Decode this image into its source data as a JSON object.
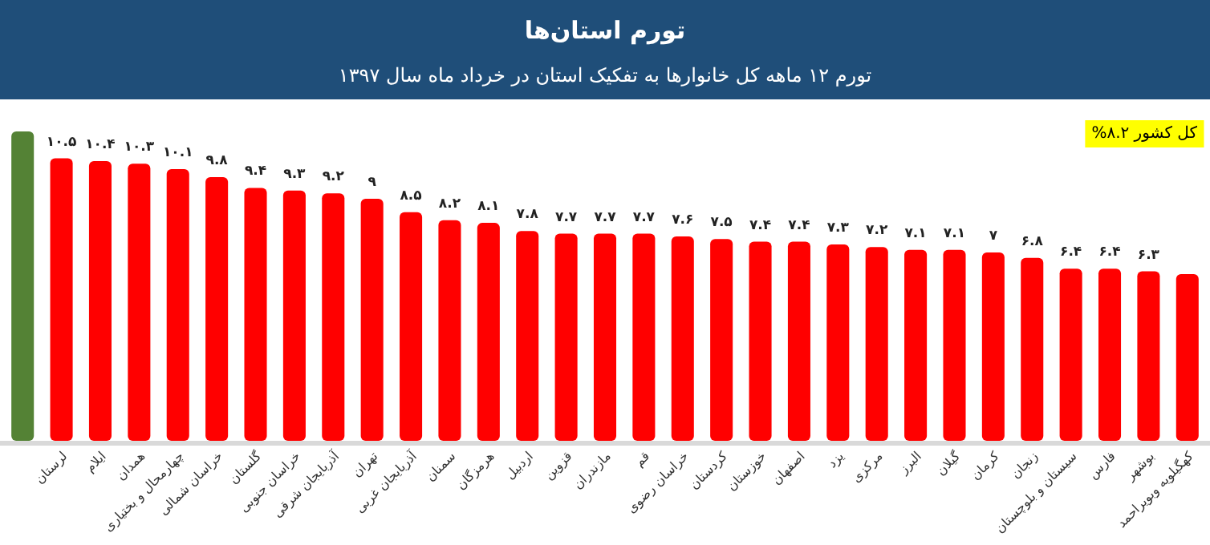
{
  "chart_data": {
    "type": "bar",
    "title": "تورم استان‌ها",
    "subtitle": "تورم ۱۲ ماهه کل خانوارها به تفکیک استان در خرداد ماه سال ۱۳۹۷",
    "categories": [
      null,
      "لرستان",
      "ایلام",
      "همدان",
      "چهارمحال و بختیاری",
      "خراسان شمالی",
      "گلستان",
      "خراسان جنوبی",
      "آذربایجان شرقی",
      "تهران",
      "آذربایجان غربی",
      "سمنان",
      "هرمزگان",
      "اردبیل",
      "قزوین",
      "مازندران",
      "قم",
      "خراسان رضوی",
      "کردستان",
      "خوزستان",
      "اصفهان",
      "یزد",
      "مرکزی",
      "البرز",
      "گیلان",
      "کرمان",
      "زنجان",
      "سیستان و بلوچستان",
      "فارس",
      "بوشهر",
      "کهگیلویه وبویراحمد"
    ],
    "values": [
      11.5,
      10.5,
      10.4,
      10.3,
      10.1,
      9.8,
      9.4,
      9.3,
      9.2,
      9,
      8.5,
      8.2,
      8.1,
      7.8,
      7.7,
      7.7,
      7.7,
      7.6,
      7.5,
      7.4,
      7.4,
      7.3,
      7.2,
      7.1,
      7.1,
      7,
      6.8,
      6.4,
      6.4,
      6.3,
      6.2
    ],
    "value_labels": [
      null,
      "۱۰.۵",
      "۱۰.۴",
      "۱۰.۳",
      "۱۰.۱",
      "۹.۸",
      "۹.۴",
      "۹.۳",
      "۹.۲",
      "۹",
      "۸.۵",
      "۸.۲",
      "۸.۱",
      "۷.۸",
      "۷.۷",
      "۷.۷",
      "۷.۷",
      "۷.۶",
      "۷.۵",
      "۷.۴",
      "۷.۴",
      "۷.۳",
      "۷.۲",
      "۷.۱",
      "۷.۱",
      "۷",
      "۶.۸",
      "۶.۴",
      "۶.۴",
      "۶.۳",
      null
    ],
    "colors": [
      "#548235",
      "#ff0000",
      "#ff0000",
      "#ff0000",
      "#ff0000",
      "#ff0000",
      "#ff0000",
      "#ff0000",
      "#ff0000",
      "#ff0000",
      "#ff0000",
      "#ff0000",
      "#ff0000",
      "#ff0000",
      "#ff0000",
      "#ff0000",
      "#ff0000",
      "#ff0000",
      "#ff0000",
      "#ff0000",
      "#ff0000",
      "#ff0000",
      "#ff0000",
      "#ff0000",
      "#ff0000",
      "#ff0000",
      "#ff0000",
      "#ff0000",
      "#ff0000",
      "#ff0000",
      "#ff0000"
    ],
    "annotations": [
      "کل کشور ۸.۲%"
    ]
  }
}
